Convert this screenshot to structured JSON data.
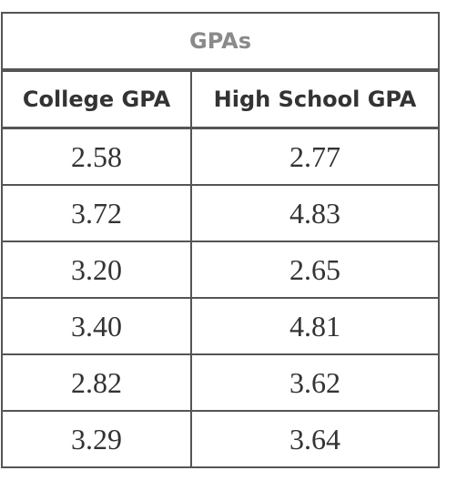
{
  "table": {
    "caption": "GPAs",
    "headers": [
      "College GPA",
      "High School GPA"
    ],
    "rows": [
      [
        "2.58",
        "2.77"
      ],
      [
        "3.72",
        "4.83"
      ],
      [
        "3.20",
        "2.65"
      ],
      [
        "3.40",
        "4.81"
      ],
      [
        "2.82",
        "3.62"
      ],
      [
        "3.29",
        "3.64"
      ]
    ]
  }
}
